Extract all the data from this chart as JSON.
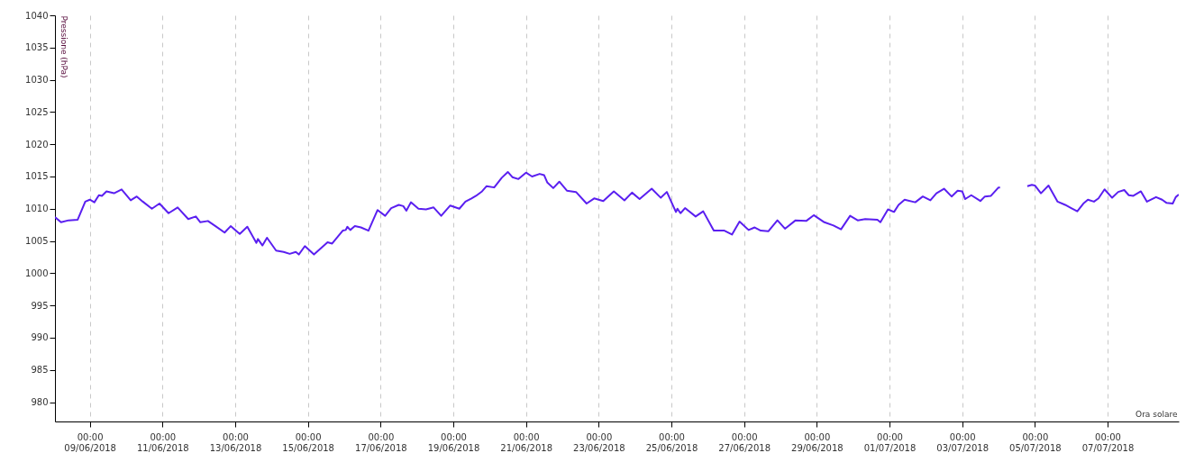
{
  "chart_data": {
    "type": "line",
    "ylabel": "Pressione (hPa)",
    "xlabel": "Ora solare",
    "color": "#5a1ff0",
    "line_style": "solid",
    "marker": "none",
    "grid": "x",
    "x": [
      "2018-06-08T01:00",
      "2018-06-08T05:00",
      "2018-06-08T10:00",
      "2018-06-08T16:00",
      "2018-06-08T21:00",
      "2018-06-09T00:00",
      "2018-06-09T03:00",
      "2018-06-09T06:00",
      "2018-06-09T08:00",
      "2018-06-09T11:00",
      "2018-06-09T16:00",
      "2018-06-09T21:00",
      "2018-06-10T03:00",
      "2018-06-10T07:00",
      "2018-06-10T11:00",
      "2018-06-10T17:00",
      "2018-06-10T22:00",
      "2018-06-11T04:00",
      "2018-06-11T10:00",
      "2018-06-11T17:00",
      "2018-06-11T22:00",
      "2018-06-12T01:00",
      "2018-06-12T06:00",
      "2018-06-12T11:00",
      "2018-06-12T17:00",
      "2018-06-12T21:00",
      "2018-06-13T03:00",
      "2018-06-13T08:00",
      "2018-06-13T14:00",
      "2018-06-13T15:00",
      "2018-06-13T18:00",
      "2018-06-13T21:00",
      "2018-06-14T03:00",
      "2018-06-14T08:00",
      "2018-06-14T12:00",
      "2018-06-14T16:00",
      "2018-06-14T18:00",
      "2018-06-14T22:00",
      "2018-06-15T04:00",
      "2018-06-15T13:00",
      "2018-06-15T16:00",
      "2018-06-15T23:00",
      "2018-06-16T01:00",
      "2018-06-16T02:00",
      "2018-06-16T04:00",
      "2018-06-16T07:00",
      "2018-06-16T11:00",
      "2018-06-16T16:00",
      "2018-06-16T22:00",
      "2018-06-17T03:00",
      "2018-06-17T07:00",
      "2018-06-17T12:00",
      "2018-06-17T15:00",
      "2018-06-17T17:00",
      "2018-06-17T20:00",
      "2018-06-18T01:00",
      "2018-06-18T06:00",
      "2018-06-18T11:00",
      "2018-06-18T16:00",
      "2018-06-18T22:00",
      "2018-06-19T04:00",
      "2018-06-19T08:00",
      "2018-06-19T12:00",
      "2018-06-19T15:00",
      "2018-06-19T19:00",
      "2018-06-19T22:00",
      "2018-06-20T03:00",
      "2018-06-20T08:00",
      "2018-06-20T12:00",
      "2018-06-20T15:00",
      "2018-06-20T19:00",
      "2018-06-21T00:00",
      "2018-06-21T04:00",
      "2018-06-21T09:00",
      "2018-06-21T12:00",
      "2018-06-21T14:00",
      "2018-06-21T18:00",
      "2018-06-21T22:00",
      "2018-06-22T03:00",
      "2018-06-22T09:00",
      "2018-06-22T16:00",
      "2018-06-22T21:00",
      "2018-06-23T03:00",
      "2018-06-23T10:00",
      "2018-06-23T17:00",
      "2018-06-23T22:00",
      "2018-06-24T03:00",
      "2018-06-24T11:00",
      "2018-06-24T17:00",
      "2018-06-24T21:00",
      "2018-06-25T03:00",
      "2018-06-25T04:00",
      "2018-06-25T06:00",
      "2018-06-25T09:00",
      "2018-06-25T16:00",
      "2018-06-25T21:00",
      "2018-06-26T04:00",
      "2018-06-26T11:00",
      "2018-06-26T16:00",
      "2018-06-26T21:00",
      "2018-06-27T03:00",
      "2018-06-27T07:00",
      "2018-06-27T11:00",
      "2018-06-27T16:00",
      "2018-06-27T22:00",
      "2018-06-28T03:00",
      "2018-06-28T10:00",
      "2018-06-28T17:00",
      "2018-06-28T22:00",
      "2018-06-29T05:00",
      "2018-06-29T11:00",
      "2018-06-29T16:00",
      "2018-06-29T22:00",
      "2018-06-30T03:00",
      "2018-06-30T08:00",
      "2018-06-30T16:00",
      "2018-06-30T18:00",
      "2018-06-30T23:00",
      "2018-07-01T03:00",
      "2018-07-01T06:00",
      "2018-07-01T10:00",
      "2018-07-01T17:00",
      "2018-07-01T22:00",
      "2018-07-02T03:00",
      "2018-07-02T07:00",
      "2018-07-02T12:00",
      "2018-07-02T17:00",
      "2018-07-02T21:00",
      "2018-07-03T00:00",
      "2018-07-03T02:00",
      "2018-07-03T06:00",
      "2018-07-03T12:00",
      "2018-07-03T15:00",
      "2018-07-03T19:00",
      "2018-07-04T00:00",
      "2018-07-04T01:00",
      "2018-07-04T02:00",
      "2018-07-04T18:00",
      "2018-07-04T19:00",
      "2018-07-04T22:00",
      "2018-07-05T00:00",
      "2018-07-05T04:00",
      "2018-07-05T09:00",
      "2018-07-05T15:00",
      "2018-07-05T20:00",
      "2018-07-06T00:00",
      "2018-07-06T04:00",
      "2018-07-06T08:00",
      "2018-07-06T11:00",
      "2018-07-06T15:00",
      "2018-07-06T18:00",
      "2018-07-06T22:00",
      "2018-07-07T03:00",
      "2018-07-07T07:00",
      "2018-07-07T11:00",
      "2018-07-07T14:00",
      "2018-07-07T17:00",
      "2018-07-07T22:00",
      "2018-07-08T02:00",
      "2018-07-08T08:00",
      "2018-07-08T12:00",
      "2018-07-08T15:00",
      "2018-07-08T19:00",
      "2018-07-08T21:00",
      "2018-07-08T23:00"
    ],
    "values": [
      1008.7,
      1007.9,
      1008.2,
      1008.3,
      1011.1,
      1011.4,
      1011.0,
      1012.1,
      1012.0,
      1012.7,
      1012.4,
      1013.0,
      1011.3,
      1011.9,
      1011.1,
      1010.0,
      1010.8,
      1009.3,
      1010.2,
      1008.4,
      1008.8,
      1007.9,
      1008.1,
      1007.3,
      1006.3,
      1007.3,
      1006.1,
      1007.2,
      1004.7,
      1005.3,
      1004.3,
      1005.5,
      1003.5,
      1003.3,
      1003.0,
      1003.3,
      1002.9,
      1004.2,
      1002.9,
      1004.8,
      1004.6,
      1006.6,
      1006.7,
      1007.2,
      1006.7,
      1007.3,
      1007.1,
      1006.6,
      1009.8,
      1008.9,
      1010.1,
      1010.6,
      1010.4,
      1009.7,
      1011.0,
      1010.0,
      1009.9,
      1010.2,
      1008.9,
      1010.5,
      1010.0,
      1011.1,
      1011.6,
      1012.0,
      1012.7,
      1013.5,
      1013.3,
      1014.8,
      1015.7,
      1014.9,
      1014.6,
      1015.6,
      1015.0,
      1015.4,
      1015.2,
      1014.1,
      1013.2,
      1014.2,
      1012.8,
      1012.6,
      1010.8,
      1011.6,
      1011.2,
      1012.7,
      1011.3,
      1012.5,
      1011.5,
      1013.1,
      1011.7,
      1012.6,
      1009.5,
      1010.0,
      1009.3,
      1010.1,
      1008.8,
      1009.6,
      1006.6,
      1006.6,
      1006.0,
      1008.0,
      1006.7,
      1007.1,
      1006.6,
      1006.5,
      1008.2,
      1006.9,
      1008.2,
      1008.1,
      1009.0,
      1007.9,
      1007.4,
      1006.8,
      1008.9,
      1008.2,
      1008.4,
      1008.3,
      1007.9,
      1009.9,
      1009.5,
      1010.6,
      1011.4,
      1011.0,
      1011.9,
      1011.3,
      1012.4,
      1013.1,
      1011.9,
      1012.8,
      1012.7,
      1011.5,
      1012.1,
      1011.2,
      1011.9,
      1012.0,
      1013.3,
      1013.3,
      null,
      null,
      1013.5,
      1013.7,
      1013.6,
      1012.4,
      1013.6,
      1011.1,
      1010.6,
      1010.1,
      1009.6,
      1010.8,
      1011.4,
      1011.1,
      1011.6,
      1013.0,
      1011.7,
      1012.6,
      1012.9,
      1012.1,
      1012.0,
      1012.7,
      1011.1,
      1011.8,
      1011.4,
      1010.9,
      1010.8,
      1011.8,
      1012.2
    ],
    "xlim": [
      "2018-06-08T01:00",
      "2018-07-08T23:00"
    ],
    "xticks": [
      {
        "value": "2018-06-09T00:00",
        "label": "00:00\n09/06/2018"
      },
      {
        "value": "2018-06-11T00:00",
        "label": "00:00\n11/06/2018"
      },
      {
        "value": "2018-06-13T00:00",
        "label": "00:00\n13/06/2018"
      },
      {
        "value": "2018-06-15T00:00",
        "label": "00:00\n15/06/2018"
      },
      {
        "value": "2018-06-17T00:00",
        "label": "00:00\n17/06/2018"
      },
      {
        "value": "2018-06-19T00:00",
        "label": "00:00\n19/06/2018"
      },
      {
        "value": "2018-06-21T00:00",
        "label": "00:00\n21/06/2018"
      },
      {
        "value": "2018-06-23T00:00",
        "label": "00:00\n23/06/2018"
      },
      {
        "value": "2018-06-25T00:00",
        "label": "00:00\n25/06/2018"
      },
      {
        "value": "2018-06-27T00:00",
        "label": "00:00\n27/06/2018"
      },
      {
        "value": "2018-06-29T00:00",
        "label": "00:00\n29/06/2018"
      },
      {
        "value": "2018-07-01T00:00",
        "label": "00:00\n01/07/2018"
      },
      {
        "value": "2018-07-03T00:00",
        "label": "00:00\n03/07/2018"
      },
      {
        "value": "2018-07-05T00:00",
        "label": "00:00\n05/07/2018"
      },
      {
        "value": "2018-07-07T00:00",
        "label": "00:00\n07/07/2018"
      }
    ],
    "ylim": [
      977,
      1040
    ],
    "yticks": [
      980,
      985,
      990,
      995,
      1000,
      1005,
      1010,
      1015,
      1020,
      1025,
      1030,
      1035,
      1040
    ]
  }
}
